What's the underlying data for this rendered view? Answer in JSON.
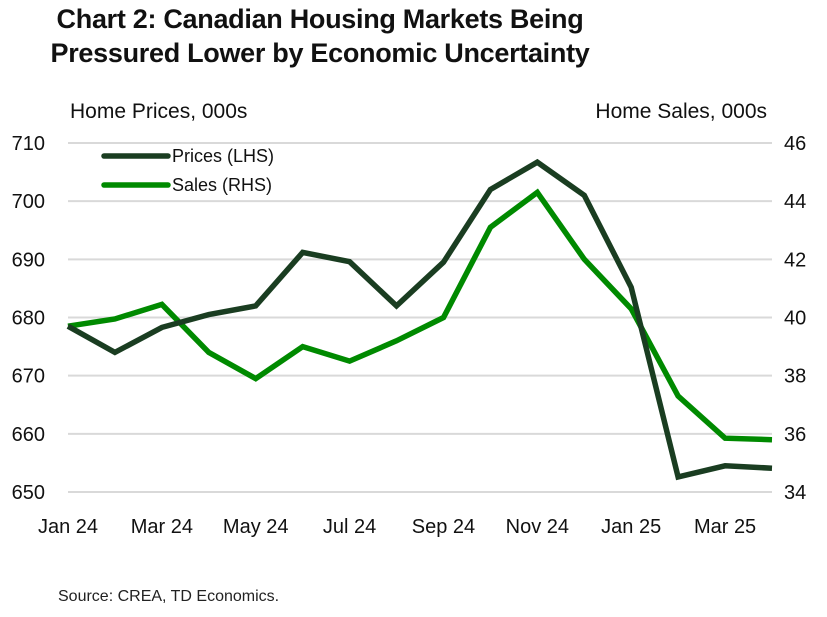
{
  "chart_data": {
    "type": "line",
    "title": "Chart 2:  Canadian Housing Markets Being Pressured Lower by Economic Uncertainty",
    "title_lines": [
      "Chart 2:  Canadian Housing Markets Being",
      "Pressured Lower by Economic Uncertainty"
    ],
    "ylabel_left": "Home Prices, 000s",
    "ylabel_right": "Home Sales, 000s",
    "source": "Source: CREA, TD Economics.",
    "x": [
      "Jan 24",
      "Feb 24",
      "Mar 24",
      "Apr 24",
      "May 24",
      "Jun 24",
      "Jul 24",
      "Aug 24",
      "Sep 24",
      "Oct 24",
      "Nov 24",
      "Dec 24",
      "Jan 25",
      "Feb 25",
      "Mar 25",
      "Apr 25"
    ],
    "x_tick_labels": [
      "Jan 24",
      "Mar 24",
      "May 24",
      "Jul 24",
      "Sep 24",
      "Nov 24",
      "Jan 25",
      "Mar 25"
    ],
    "ylim_left": [
      650,
      710
    ],
    "yticks_left": [
      710,
      700,
      690,
      680,
      670,
      660,
      650
    ],
    "ylim_right": [
      34,
      46
    ],
    "yticks_right": [
      46,
      44,
      42,
      40,
      38,
      36,
      34
    ],
    "grid": true,
    "legend_position": "top-left",
    "series": [
      {
        "name": "Prices (LHS)",
        "axis": "left",
        "color": "#1a3d21",
        "values": [
          678.5,
          674.0,
          678.3,
          680.5,
          682.0,
          691.2,
          689.6,
          682.0,
          689.5,
          702.0,
          706.7,
          701.0,
          685.2,
          652.6,
          654.5,
          654.1
        ]
      },
      {
        "name": "Sales (RHS)",
        "axis": "right",
        "color": "#008a00",
        "values": [
          39.7,
          39.95,
          40.45,
          38.8,
          37.9,
          39.0,
          38.5,
          39.2,
          40.0,
          43.1,
          44.3,
          42.0,
          40.3,
          37.3,
          35.85,
          35.8
        ]
      }
    ]
  }
}
